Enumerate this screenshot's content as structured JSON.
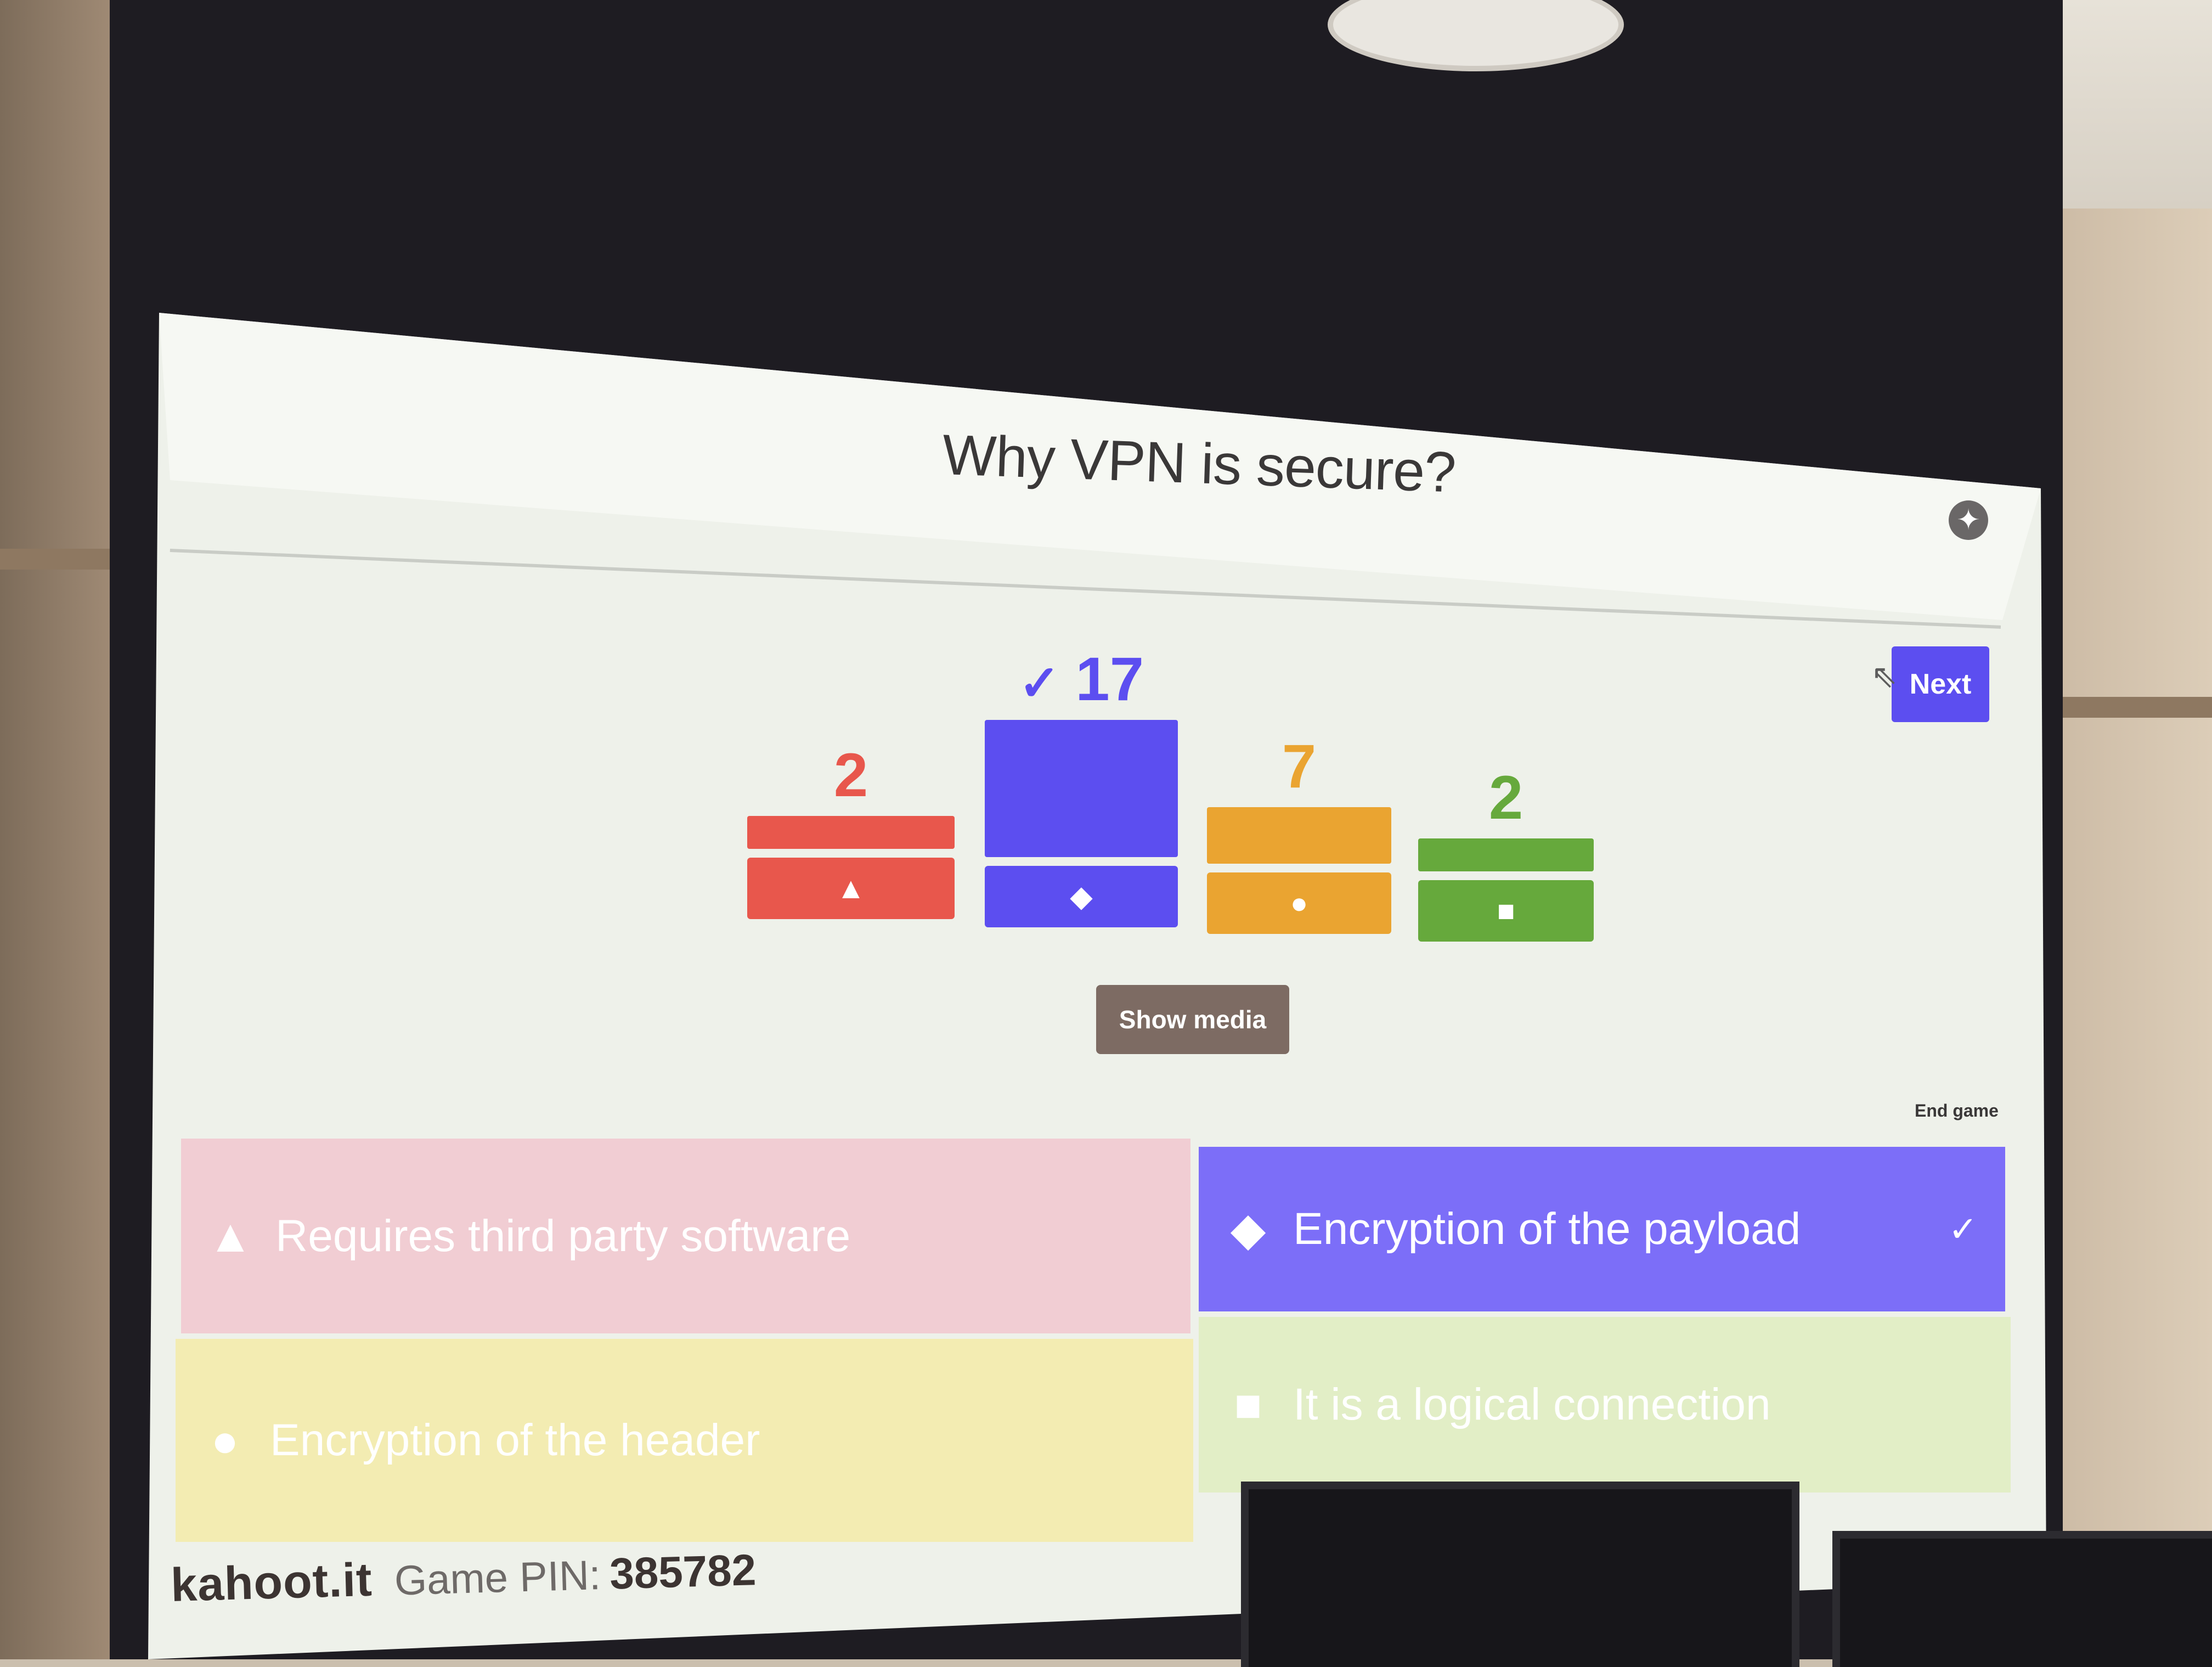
{
  "question": {
    "title": "Why VPN is secure?"
  },
  "controls": {
    "next_label": "Next",
    "show_media_label": "Show media",
    "end_game_label": "End game"
  },
  "results": [
    {
      "count": "2",
      "correct": false,
      "color": "#e8574c",
      "shape": "triangle-icon",
      "glyph": "▲"
    },
    {
      "count": "17",
      "correct": true,
      "color": "#5c4ef0",
      "shape": "diamond-icon",
      "glyph": "◆"
    },
    {
      "count": "7",
      "correct": false,
      "color": "#eaa431",
      "shape": "circle-icon",
      "glyph": "●"
    },
    {
      "count": "2",
      "correct": false,
      "color": "#66a93c",
      "shape": "square-icon",
      "glyph": "■"
    }
  ],
  "answers": [
    {
      "text": "Requires third party software",
      "correct": false,
      "color": "#f1cdd3",
      "shape": "triangle-icon",
      "glyph": "▲"
    },
    {
      "text": "Encryption of the payload",
      "correct": true,
      "color": "#7c6ef8",
      "shape": "diamond-icon",
      "glyph": "◆"
    },
    {
      "text": "Encryption of the header",
      "correct": false,
      "color": "#f3ecb2",
      "shape": "circle-icon",
      "glyph": "●"
    },
    {
      "text": "It is a logical connection",
      "correct": false,
      "color": "#e2eec6",
      "shape": "square-icon",
      "glyph": "■"
    }
  ],
  "correct_mark": "✓",
  "footer": {
    "brand": "kahoot.it",
    "pin_label": "Game PIN:",
    "pin_value": "385782"
  }
}
